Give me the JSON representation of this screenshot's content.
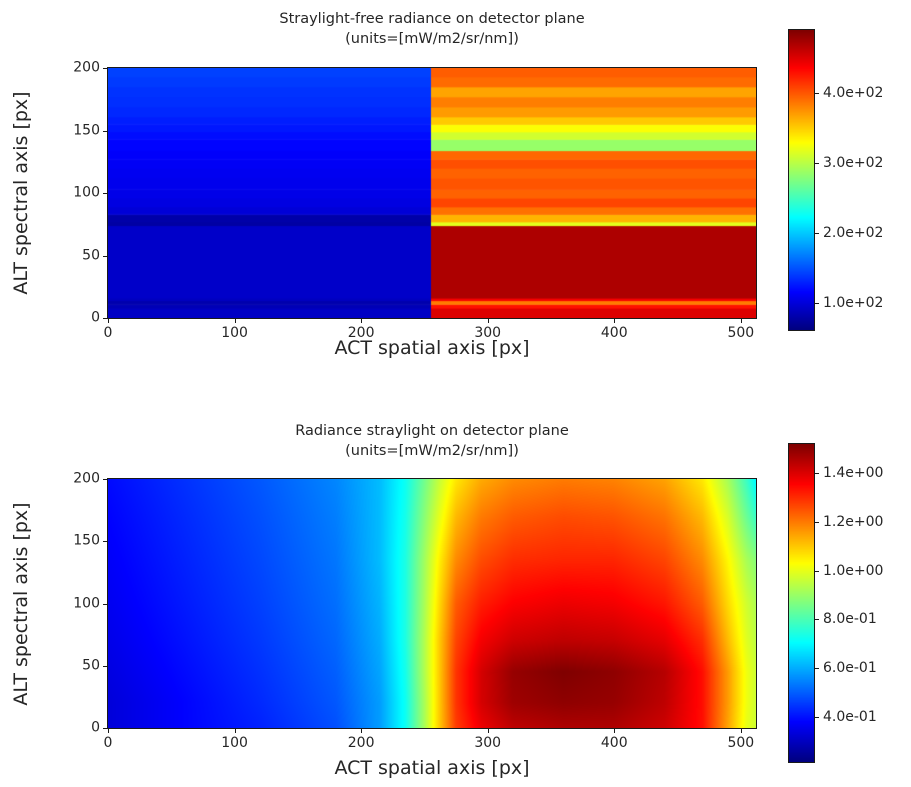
{
  "figure": {
    "background": "#ffffff",
    "accent_colormap": "jet"
  },
  "chart_data": [
    {
      "type": "heatmap",
      "colormap": "jet",
      "title": "Straylight-free radiance on detector plane",
      "subtitle": "(units=[mW/m2/sr/nm])",
      "xlabel": "ACT spatial axis [px]",
      "ylabel": "ALT spectral axis [px]",
      "xlim": [
        0,
        512
      ],
      "ylim": [
        0,
        200
      ],
      "xticks": [
        0,
        100,
        200,
        300,
        400,
        500
      ],
      "yticks": [
        0,
        50,
        100,
        150,
        200
      ],
      "vmin": 61,
      "vmax": 491,
      "colorbar_ticks": [
        {
          "v": 100,
          "label": "1.0e+02"
        },
        {
          "v": 200,
          "label": "2.0e+02"
        },
        {
          "v": 300,
          "label": "3.0e+02"
        },
        {
          "v": 400,
          "label": "4.0e+02"
        }
      ],
      "data": {
        "description": "Two vertical halves split at ACT px 255; horizontal spectral bands. Values in mW/m2/sr/nm for left (dark-blue) half and right (orange/red) half.",
        "x_split": 255,
        "bands": [
          {
            "y0": 0,
            "y1": 8,
            "left": 90,
            "right": 452
          },
          {
            "y0": 8,
            "y1": 11,
            "left": 84,
            "right": 430
          },
          {
            "y0": 11,
            "y1": 14,
            "left": 80,
            "right": 385
          },
          {
            "y0": 14,
            "y1": 16,
            "left": 88,
            "right": 440
          },
          {
            "y0": 16,
            "y1": 74,
            "left": 92,
            "right": 472
          },
          {
            "y0": 74,
            "y1": 77,
            "left": 76,
            "right": 318
          },
          {
            "y0": 77,
            "y1": 83,
            "left": 78,
            "right": 362
          },
          {
            "y0": 83,
            "y1": 89,
            "left": 98,
            "right": 390
          },
          {
            "y0": 89,
            "y1": 96,
            "left": 102,
            "right": 408
          },
          {
            "y0": 96,
            "y1": 103,
            "left": 105,
            "right": 396
          },
          {
            "y0": 103,
            "y1": 112,
            "left": 107,
            "right": 402
          },
          {
            "y0": 112,
            "y1": 120,
            "left": 109,
            "right": 396
          },
          {
            "y0": 120,
            "y1": 127,
            "left": 111,
            "right": 404
          },
          {
            "y0": 127,
            "y1": 134,
            "left": 113,
            "right": 394
          },
          {
            "y0": 134,
            "y1": 143,
            "left": 116,
            "right": 286
          },
          {
            "y0": 143,
            "y1": 149,
            "left": 120,
            "right": 310
          },
          {
            "y0": 149,
            "y1": 155,
            "left": 124,
            "right": 328
          },
          {
            "y0": 155,
            "y1": 161,
            "left": 127,
            "right": 352
          },
          {
            "y0": 161,
            "y1": 169,
            "left": 131,
            "right": 372
          },
          {
            "y0": 169,
            "y1": 177,
            "left": 134,
            "right": 384
          },
          {
            "y0": 177,
            "y1": 185,
            "left": 136,
            "right": 368
          },
          {
            "y0": 185,
            "y1": 193,
            "left": 139,
            "right": 392
          },
          {
            "y0": 193,
            "y1": 200,
            "left": 142,
            "right": 398
          }
        ]
      }
    },
    {
      "type": "heatmap",
      "colormap": "jet",
      "title": "Radiance straylight on detector plane",
      "subtitle": "(units=[mW/m2/sr/nm])",
      "xlabel": "ACT spatial axis [px]",
      "ylabel": "ALT spectral axis [px]",
      "xlim": [
        0,
        512
      ],
      "ylim": [
        0,
        200
      ],
      "xticks": [
        0,
        100,
        200,
        300,
        400,
        500
      ],
      "yticks": [
        0,
        50,
        100,
        150,
        200
      ],
      "vmin": 0.215,
      "vmax": 1.52,
      "colorbar_ticks": [
        {
          "v": 0.4,
          "label": "4.0e-01"
        },
        {
          "v": 0.6,
          "label": "6.0e-01"
        },
        {
          "v": 0.8,
          "label": "8.0e-01"
        },
        {
          "v": 1.0,
          "label": "1.0e+00"
        },
        {
          "v": 1.2,
          "label": "1.2e+00"
        },
        {
          "v": 1.4,
          "label": "1.4e+00"
        }
      ],
      "data": {
        "description": "Smooth straylight field: blue gradient on left, sharp rainbow transition near ACT px 250, dark-red maximum near (x=360, y=45), yellow-green fade at right edge. Grid values in mW/m2/sr/nm, bilinearly interpolated.",
        "grid_x": [
          0,
          60,
          120,
          180,
          215,
          235,
          250,
          262,
          275,
          295,
          320,
          360,
          400,
          440,
          470,
          490,
          505,
          512
        ],
        "grid_y": [
          0,
          20,
          45,
          70,
          100,
          135,
          170,
          200
        ],
        "values": [
          [
            0.33,
            0.38,
            0.42,
            0.48,
            0.58,
            0.72,
            0.92,
            1.1,
            1.28,
            1.38,
            1.44,
            1.46,
            1.46,
            1.42,
            1.34,
            1.15,
            1.0,
            0.97
          ],
          [
            0.33,
            0.38,
            0.43,
            0.49,
            0.58,
            0.72,
            0.92,
            1.1,
            1.29,
            1.41,
            1.48,
            1.5,
            1.49,
            1.44,
            1.34,
            1.16,
            1.01,
            0.97
          ],
          [
            0.34,
            0.39,
            0.44,
            0.5,
            0.59,
            0.73,
            0.93,
            1.1,
            1.29,
            1.41,
            1.49,
            1.52,
            1.5,
            1.45,
            1.34,
            1.16,
            1.01,
            0.97
          ],
          [
            0.35,
            0.4,
            0.45,
            0.51,
            0.6,
            0.74,
            0.93,
            1.1,
            1.27,
            1.37,
            1.42,
            1.44,
            1.43,
            1.39,
            1.3,
            1.12,
            0.99,
            0.95
          ],
          [
            0.36,
            0.41,
            0.46,
            0.52,
            0.61,
            0.74,
            0.92,
            1.08,
            1.24,
            1.32,
            1.36,
            1.38,
            1.37,
            1.33,
            1.24,
            1.08,
            0.97,
            0.93
          ],
          [
            0.37,
            0.42,
            0.47,
            0.53,
            0.62,
            0.74,
            0.91,
            1.05,
            1.18,
            1.26,
            1.3,
            1.31,
            1.31,
            1.27,
            1.18,
            1.04,
            0.92,
            0.88
          ],
          [
            0.38,
            0.43,
            0.48,
            0.54,
            0.62,
            0.73,
            0.88,
            1.0,
            1.12,
            1.2,
            1.24,
            1.26,
            1.25,
            1.21,
            1.12,
            0.98,
            0.84,
            0.78
          ],
          [
            0.39,
            0.44,
            0.49,
            0.55,
            0.62,
            0.72,
            0.85,
            0.96,
            1.06,
            1.14,
            1.18,
            1.2,
            1.19,
            1.15,
            1.06,
            0.92,
            0.78,
            0.7
          ]
        ]
      }
    }
  ]
}
